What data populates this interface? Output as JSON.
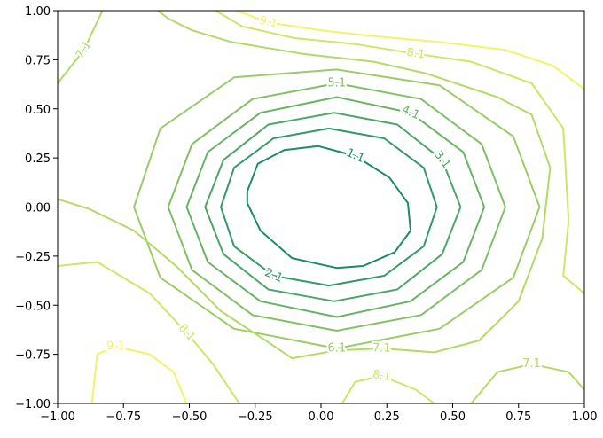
{
  "chart_data": {
    "type": "contour",
    "xlim": [
      -1,
      1
    ],
    "ylim": [
      -1,
      1
    ],
    "xticks": [
      {
        "value": -1,
        "label": "−1.00"
      },
      {
        "value": -0.75,
        "label": "−0.75"
      },
      {
        "value": -0.5,
        "label": "−0.50"
      },
      {
        "value": -0.25,
        "label": "−0.25"
      },
      {
        "value": 0,
        "label": "0.00"
      },
      {
        "value": 0.25,
        "label": "0.25"
      },
      {
        "value": 0.5,
        "label": "0.50"
      },
      {
        "value": 0.75,
        "label": "0.75"
      },
      {
        "value": 1,
        "label": "1.00"
      }
    ],
    "yticks": [
      {
        "value": -1,
        "label": "−1.00"
      },
      {
        "value": -0.75,
        "label": "−0.75"
      },
      {
        "value": -0.5,
        "label": "−0.50"
      },
      {
        "value": -0.25,
        "label": "−0.25"
      },
      {
        "value": 0,
        "label": "0.00"
      },
      {
        "value": 0.25,
        "label": "0.25"
      },
      {
        "value": 0.5,
        "label": "0.50"
      },
      {
        "value": 0.75,
        "label": "0.75"
      },
      {
        "value": 1,
        "label": "1.00"
      }
    ],
    "series": [
      {
        "level": 1.1,
        "color": "#1a8c66",
        "pieces": [
          {
            "x": [
              -0.28,
              -0.24,
              -0.14,
              -0.01,
              0.13,
              0.26,
              0.33,
              0.34,
              0.28,
              0.16,
              0.06,
              -0.11,
              -0.23,
              -0.28,
              -0.28
            ],
            "y": [
              0.08,
              0.22,
              0.29,
              0.31,
              0.26,
              0.15,
              0.02,
              -0.12,
              -0.23,
              -0.3,
              -0.31,
              -0.26,
              -0.12,
              0.02,
              0.08
            ]
          }
        ]
      },
      {
        "level": 2.1,
        "color": "#339966",
        "pieces": [
          {
            "x": [
              0.44,
              0.39,
              0.24,
              0.03,
              -0.18,
              -0.33,
              -0.38,
              -0.33,
              -0.18,
              0.03,
              0.24,
              0.39,
              0.44
            ],
            "y": [
              0,
              0.2,
              0.35,
              0.4,
              0.35,
              0.2,
              0,
              -0.2,
              -0.35,
              -0.4,
              -0.35,
              -0.2,
              0
            ]
          }
        ]
      },
      {
        "level": 3.1,
        "color": "#4da666",
        "pieces": [
          {
            "x": [
              0.53,
              0.46,
              0.29,
              0.05,
              -0.2,
              -0.37,
              -0.44,
              -0.37,
              -0.2,
              0.05,
              0.29,
              0.46,
              0.53
            ],
            "y": [
              0,
              0.24,
              0.42,
              0.48,
              0.42,
              0.24,
              0,
              -0.24,
              -0.42,
              -0.48,
              -0.42,
              -0.24,
              0
            ]
          }
        ]
      },
      {
        "level": 4.1,
        "color": "#66b366",
        "pieces": [
          {
            "x": [
              0.62,
              0.54,
              0.34,
              0.06,
              -0.23,
              -0.43,
              -0.51,
              -0.43,
              -0.23,
              0.06,
              0.34,
              0.54,
              0.62
            ],
            "y": [
              0,
              0.28,
              0.48,
              0.56,
              0.48,
              0.28,
              0,
              -0.28,
              -0.48,
              -0.56,
              -0.48,
              -0.28,
              0
            ]
          }
        ]
      },
      {
        "level": 5.1,
        "color": "#80bf66",
        "pieces": [
          {
            "x": [
              0.7,
              0.61,
              0.38,
              0.06,
              -0.26,
              -0.49,
              -0.58,
              -0.49,
              -0.26,
              0.06,
              0.38,
              0.61,
              0.7
            ],
            "y": [
              0,
              0.32,
              0.55,
              0.63,
              0.55,
              0.32,
              0,
              -0.32,
              -0.55,
              -0.63,
              -0.55,
              -0.32,
              0
            ]
          }
        ]
      },
      {
        "level": 6.1,
        "color": "#99cc66",
        "pieces": [
          {
            "x": [
              0.83,
              0.73,
              0.45,
              0.06,
              -0.33,
              -0.61,
              -0.71,
              -0.61,
              -0.33,
              0.06,
              0.45,
              0.73,
              0.83
            ],
            "y": [
              0,
              0.36,
              0.62,
              0.7,
              0.66,
              0.4,
              0,
              -0.36,
              -0.62,
              -0.72,
              -0.62,
              -0.36,
              0
            ]
          }
        ]
      },
      {
        "level": 7.1,
        "color": "#b3d966",
        "pieces": [
          {
            "x": [
              -1,
              -0.88,
              -0.71,
              -0.55,
              -0.38,
              -0.21,
              -0.11,
              0.06,
              0.23,
              0.43,
              0.6,
              0.75,
              0.84,
              0.87,
              0.8,
              0.67,
              0.4,
              0.2,
              -0.07,
              -0.34,
              -0.49,
              -0.58,
              -0.62
            ],
            "y": [
              0.04,
              -0.01,
              -0.12,
              -0.3,
              -0.53,
              -0.68,
              -0.77,
              -0.73,
              -0.72,
              -0.74,
              -0.68,
              -0.48,
              -0.16,
              0.2,
              0.47,
              0.56,
              0.68,
              0.74,
              0.78,
              0.84,
              0.9,
              0.96,
              1
            ]
          },
          {
            "x": [
              -1,
              -0.9,
              -0.83
            ],
            "y": [
              0.63,
              0.8,
              1
            ]
          },
          {
            "x": [
              0.57,
              0.67,
              0.8,
              0.94,
              1
            ],
            "y": [
              -1,
              -0.84,
              -0.8,
              -0.84,
              -0.93
            ]
          }
        ]
      },
      {
        "level": 8.1,
        "color": "#cce666",
        "pieces": [
          {
            "x": [
              -0.4,
              -0.3,
              -0.1,
              0.13,
              0.36,
              0.57,
              0.8,
              0.92,
              0.94,
              0.92,
              1
            ],
            "y": [
              1,
              0.92,
              0.86,
              0.83,
              0.78,
              0.74,
              0.63,
              0.4,
              -0.07,
              -0.35,
              -0.44
            ]
          },
          {
            "x": [
              -1,
              -0.85,
              -0.65,
              -0.51,
              -0.41,
              -0.31
            ],
            "y": [
              -0.3,
              -0.28,
              -0.44,
              -0.64,
              -0.8,
              -1
            ]
          },
          {
            "x": [
              0.08,
              0.13,
              0.23,
              0.36,
              0.43
            ],
            "y": [
              -1,
              -0.89,
              -0.86,
              -0.93,
              -1
            ]
          }
        ]
      },
      {
        "level": 9.1,
        "color": "#f0f566",
        "pieces": [
          {
            "x": [
              -0.32,
              -0.2,
              0,
              0.2,
              0.45,
              0.7,
              0.88,
              1
            ],
            "y": [
              1,
              0.94,
              0.9,
              0.87,
              0.84,
              0.8,
              0.72,
              0.6
            ]
          },
          {
            "x": [
              -0.87,
              -0.85,
              -0.78,
              -0.65,
              -0.56,
              -0.51
            ],
            "y": [
              -1,
              -0.75,
              -0.71,
              -0.75,
              -0.84,
              -1
            ]
          }
        ]
      }
    ]
  }
}
